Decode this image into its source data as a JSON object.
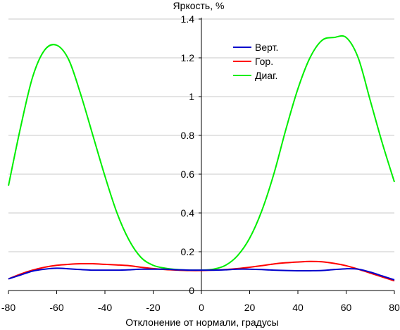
{
  "chart_data": {
    "type": "line",
    "title": "",
    "xlabel": "Отклонение от нормали, градусы",
    "ylabel": "Яркость, %",
    "xlim": [
      -80,
      80
    ],
    "ylim": [
      0,
      1.4
    ],
    "x_ticks": [
      "-80",
      "-60",
      "-40",
      "-20",
      "0",
      "20",
      "40",
      "60",
      "80"
    ],
    "y_ticks": [
      "0",
      "0.2",
      "0.4",
      "0.6",
      "0.8",
      "1",
      "1.2",
      "1.4"
    ],
    "grid": "horizontal",
    "legend_position": "top-right",
    "x": [
      -80,
      -75,
      -70,
      -65,
      -60,
      -55,
      -50,
      -45,
      -40,
      -35,
      -30,
      -25,
      -20,
      -15,
      -10,
      -5,
      0,
      5,
      10,
      15,
      20,
      25,
      30,
      35,
      40,
      45,
      50,
      55,
      60,
      65,
      70,
      75,
      80
    ],
    "series": [
      {
        "name": "Верт.",
        "color": "#0000cc",
        "values": [
          0.06,
          0.08,
          0.1,
          0.11,
          0.115,
          0.112,
          0.108,
          0.105,
          0.105,
          0.105,
          0.107,
          0.11,
          0.11,
          0.11,
          0.107,
          0.105,
          0.105,
          0.105,
          0.107,
          0.11,
          0.11,
          0.108,
          0.105,
          0.103,
          0.102,
          0.102,
          0.103,
          0.108,
          0.112,
          0.11,
          0.095,
          0.075,
          0.055
        ]
      },
      {
        "name": "Гор.",
        "color": "#ff0000",
        "values": [
          0.06,
          0.085,
          0.105,
          0.12,
          0.13,
          0.135,
          0.138,
          0.138,
          0.135,
          0.132,
          0.128,
          0.12,
          0.113,
          0.108,
          0.105,
          0.103,
          0.103,
          0.105,
          0.108,
          0.113,
          0.12,
          0.128,
          0.137,
          0.143,
          0.147,
          0.15,
          0.148,
          0.14,
          0.128,
          0.11,
          0.09,
          0.07,
          0.05
        ]
      },
      {
        "name": "Диаг.",
        "color": "#00ee00",
        "values": [
          0.54,
          0.84,
          1.1,
          1.24,
          1.265,
          1.19,
          1.01,
          0.8,
          0.59,
          0.4,
          0.26,
          0.17,
          0.13,
          0.115,
          0.108,
          0.105,
          0.105,
          0.11,
          0.13,
          0.18,
          0.27,
          0.41,
          0.6,
          0.83,
          1.04,
          1.2,
          1.29,
          1.305,
          1.305,
          1.2,
          0.98,
          0.76,
          0.56
        ]
      }
    ]
  }
}
